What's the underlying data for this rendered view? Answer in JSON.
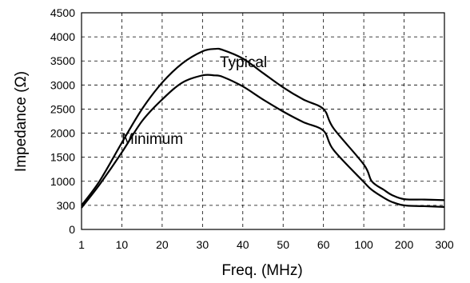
{
  "chart_data": {
    "type": "line",
    "xlabel": "Freq. (MHz)",
    "ylabel": "Impedance (Ω)",
    "x_ticks": [
      "1",
      "10",
      "20",
      "30",
      "40",
      "50",
      "60",
      "100",
      "200",
      "300"
    ],
    "y_ticks": [
      "0",
      "300",
      "1000",
      "1500",
      "2000",
      "2500",
      "3000",
      "3500",
      "4000",
      "4500"
    ],
    "grid": true,
    "series": [
      {
        "name": "Typical",
        "points": [
          [
            "1",
            300
          ],
          [
            "5",
            1000
          ],
          [
            "10",
            1800
          ],
          [
            "15",
            2500
          ],
          [
            "20",
            3050
          ],
          [
            "25",
            3450
          ],
          [
            "30",
            3700
          ],
          [
            "33",
            3750
          ],
          [
            "35",
            3730
          ],
          [
            "40",
            3550
          ],
          [
            "45",
            3250
          ],
          [
            "50",
            2950
          ],
          [
            "55",
            2700
          ],
          [
            "60",
            2500
          ],
          [
            "70",
            2100
          ],
          [
            "100",
            1350
          ],
          [
            "120",
            1000
          ],
          [
            "150",
            750
          ],
          [
            "170",
            600
          ],
          [
            "200",
            480
          ],
          [
            "250",
            470
          ],
          [
            "300",
            450
          ]
        ]
      },
      {
        "name": "Minimum",
        "points": [
          [
            "1",
            270
          ],
          [
            "5",
            900
          ],
          [
            "10",
            1600
          ],
          [
            "15",
            2250
          ],
          [
            "20",
            2700
          ],
          [
            "25",
            3050
          ],
          [
            "30",
            3200
          ],
          [
            "33",
            3200
          ],
          [
            "35",
            3170
          ],
          [
            "40",
            2970
          ],
          [
            "45",
            2700
          ],
          [
            "50",
            2450
          ],
          [
            "55",
            2230
          ],
          [
            "60",
            2050
          ],
          [
            "70",
            1650
          ],
          [
            "100",
            980
          ],
          [
            "120",
            750
          ],
          [
            "150",
            520
          ],
          [
            "170",
            400
          ],
          [
            "200",
            300
          ],
          [
            "250",
            290
          ],
          [
            "300",
            280
          ]
        ]
      }
    ]
  }
}
